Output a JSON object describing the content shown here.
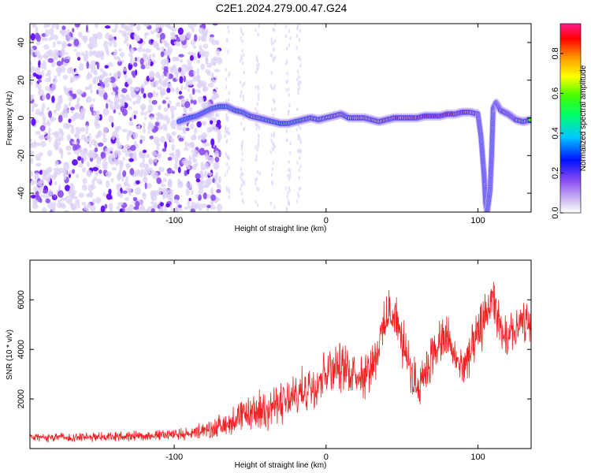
{
  "title": "C2E1.2024.279.00.47.G24",
  "colors": {
    "snr_line": "#ee2222",
    "colormap": [
      "#dcd0f5",
      "#8a4cf0",
      "#5a00ff",
      "#0011ff",
      "#00c8ff",
      "#00ff66",
      "#44ff00",
      "#ffff00",
      "#ff9900",
      "#ff0000",
      "#ff1a8c"
    ]
  },
  "chart_data": [
    {
      "type": "heatmap",
      "xlabel": "Height of straight line (km)",
      "ylabel": "Frequency (Hz)",
      "xlim": [
        -195,
        135
      ],
      "ylim": [
        -50,
        50
      ],
      "x_ticks": [
        "-100",
        "0",
        "100"
      ],
      "x_tick_values": [
        -100,
        0,
        100
      ],
      "y_ticks": [
        "-40",
        "-20",
        "0",
        "20",
        "40"
      ],
      "y_tick_values": [
        -40,
        -20,
        0,
        20,
        40
      ],
      "colorbar": {
        "label": "Normalized spectral amplitude",
        "range": [
          0,
          0.95
        ],
        "ticks": [
          "0.0",
          "0.2",
          "0.4",
          "0.6",
          "0.8"
        ],
        "tick_values": [
          0,
          0.2,
          0.4,
          0.6,
          0.8
        ]
      },
      "ridge": {
        "x": [
          -97,
          -90,
          -85,
          -80,
          -75,
          -70,
          -65,
          -60,
          -55,
          -50,
          -45,
          -40,
          -35,
          -30,
          -25,
          -20,
          -15,
          -10,
          -5,
          0,
          5,
          10,
          15,
          20,
          25,
          30,
          35,
          40,
          45,
          50,
          55,
          60,
          65,
          70,
          75,
          80,
          85,
          90,
          95,
          100,
          102,
          104,
          105,
          106,
          107,
          108,
          109,
          110,
          112,
          115,
          120,
          125,
          130,
          135
        ],
        "y": [
          -2,
          0,
          1,
          3,
          5,
          6,
          6,
          4,
          3,
          1,
          0,
          -1,
          -2,
          -3,
          -3,
          -2,
          -1,
          0,
          -1,
          0,
          1,
          2,
          0,
          0,
          0,
          -1,
          -2,
          -1,
          0,
          0,
          0,
          0,
          1,
          1,
          1,
          2,
          2,
          3,
          3,
          2,
          -10,
          -30,
          -45,
          -50,
          -45,
          -38,
          -20,
          5,
          8,
          4,
          2,
          -1,
          -2,
          -1
        ],
        "amplitude": [
          0.4,
          0.35,
          0.35,
          0.4,
          0.45,
          0.5,
          0.5,
          0.5,
          0.55,
          0.55,
          0.6,
          0.55,
          0.5,
          0.45,
          0.5,
          0.5,
          0.6,
          0.6,
          0.65,
          0.65,
          0.7,
          0.7,
          0.65,
          0.7,
          0.7,
          0.65,
          0.7,
          0.75,
          0.75,
          0.75,
          0.8,
          0.8,
          0.85,
          0.9,
          0.9,
          0.85,
          0.85,
          0.8,
          0.75,
          0.7,
          0.45,
          0.4,
          0.45,
          0.35,
          0.45,
          0.4,
          0.4,
          0.5,
          0.6,
          0.65,
          0.7,
          0.65,
          0.6,
          0.55
        ]
      },
      "noise_region": {
        "x_start": -195,
        "x_end": -70,
        "amplitude": 0.2
      }
    },
    {
      "type": "line",
      "xlabel": "Height of straight line (km)",
      "ylabel": "SNR (10 * v/v)",
      "xlim": [
        -195,
        135
      ],
      "ylim": [
        0,
        7600
      ],
      "x_ticks": [
        "-100",
        "0",
        "100"
      ],
      "x_tick_values": [
        -100,
        0,
        100
      ],
      "y_ticks": [
        "2000",
        "4000",
        "6000"
      ],
      "y_tick_values": [
        2000,
        4000,
        6000
      ],
      "trend": {
        "x": [
          -195,
          -170,
          -150,
          -130,
          -110,
          -90,
          -75,
          -65,
          -55,
          -45,
          -35,
          -25,
          -15,
          -5,
          0,
          5,
          15,
          25,
          30,
          35,
          40,
          45,
          50,
          55,
          60,
          65,
          70,
          75,
          80,
          85,
          90,
          95,
          100,
          105,
          110,
          115,
          120,
          125,
          130,
          135
        ],
        "y": [
          450,
          450,
          480,
          500,
          550,
          600,
          800,
          1000,
          1300,
          1500,
          1700,
          1900,
          2300,
          2800,
          3200,
          3300,
          3200,
          3000,
          3400,
          4200,
          5200,
          5600,
          4300,
          3200,
          2500,
          3100,
          3800,
          4200,
          4500,
          3600,
          3300,
          3800,
          4500,
          5400,
          6100,
          4600,
          4400,
          4800,
          5000,
          4900
        ],
        "noise": [
          150,
          170,
          180,
          190,
          200,
          220,
          350,
          500,
          600,
          700,
          750,
          800,
          850,
          900,
          900,
          900,
          850,
          850,
          850,
          900,
          900,
          950,
          950,
          850,
          800,
          850,
          850,
          850,
          850,
          800,
          800,
          850,
          900,
          900,
          950,
          900,
          850,
          850,
          850,
          850
        ]
      }
    }
  ]
}
